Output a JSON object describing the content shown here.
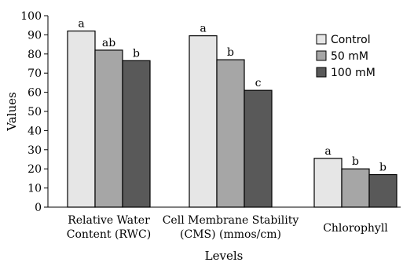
{
  "chart_data": {
    "type": "bar",
    "xlabel": "Levels",
    "ylabel": "Values",
    "ylim": [
      0,
      100
    ],
    "yticks": [
      0,
      10,
      20,
      30,
      40,
      50,
      60,
      70,
      80,
      90,
      100
    ],
    "categories": [
      [
        "Relative Water",
        "Content (RWC)"
      ],
      [
        "Cell Membrane Stability",
        "(CMS) (mmos/cm)"
      ],
      [
        "Chlorophyll"
      ]
    ],
    "series": [
      {
        "name": "Control",
        "color": "#e6e6e6",
        "values": [
          92,
          89.5,
          25.5
        ],
        "labels": [
          "a",
          "a",
          "a"
        ]
      },
      {
        "name": "50 mM",
        "color": "#a6a6a6",
        "values": [
          82,
          77,
          20
        ],
        "labels": [
          "ab",
          "b",
          "b"
        ]
      },
      {
        "name": "100 mM",
        "color": "#595959",
        "values": [
          76.5,
          61,
          17
        ],
        "labels": [
          "b",
          "c",
          "b"
        ]
      }
    ],
    "legend_position": "top-right",
    "grid": false
  }
}
